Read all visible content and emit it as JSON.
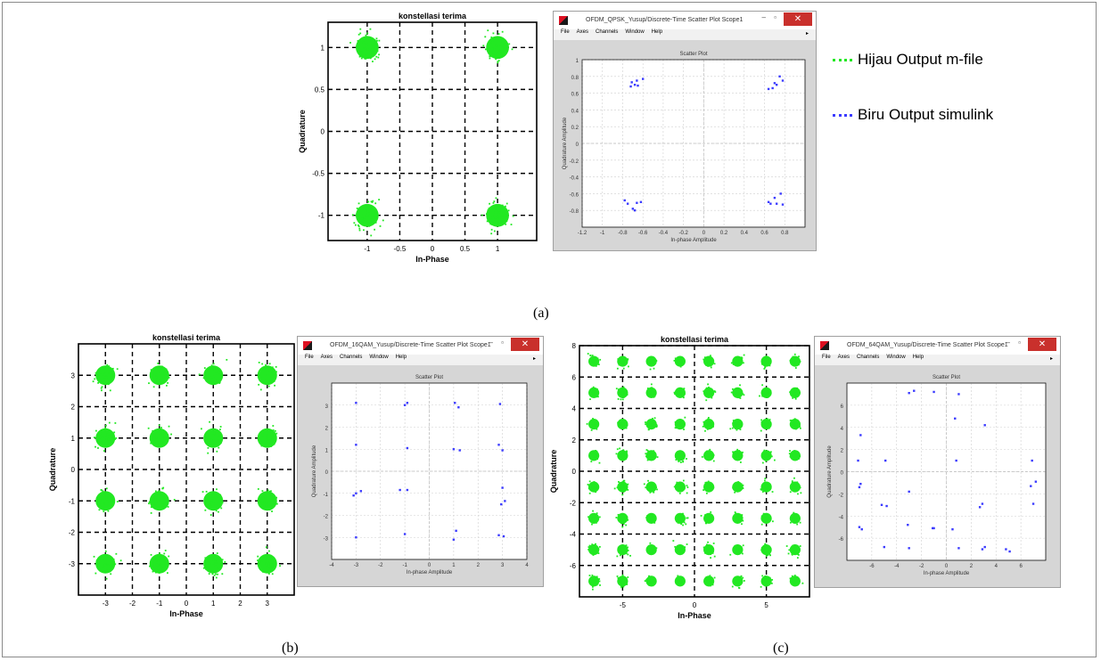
{
  "legend": {
    "green_label": "Hijau Output m-file",
    "blue_label": "Biru Output simulink",
    "green_color": "#22e822",
    "blue_color": "#3b3bff"
  },
  "captions": {
    "a": "(a)",
    "b": "(b)",
    "c": "(c)"
  },
  "windows": {
    "a": {
      "title": "OFDM_QPSK_Yusup/Discrete-Time Scatter Plot Scope1"
    },
    "b": {
      "title": "OFDM_16QAM_Yusup/Discrete-Time Scatter Plot Scope1"
    },
    "c": {
      "title": "OFDM_64QAM_Yusup/Discrete-Time Scatter Plot Scope1"
    },
    "menu": [
      "File",
      "Axes",
      "Channels",
      "Window",
      "Help"
    ],
    "controls": {
      "minimize": "–",
      "restore": "▫",
      "close": "✕",
      "menu_arrow": "▸"
    }
  },
  "chart_data": [
    {
      "id": "qpsk-mfile",
      "type": "scatter",
      "title": "konstellasi terima",
      "xlabel": "In-Phase",
      "ylabel": "Quadrature",
      "xlim": [
        -1.6,
        1.6
      ],
      "ylim": [
        -1.3,
        1.3
      ],
      "xticks": [
        -1,
        -0.5,
        0,
        0.5,
        1
      ],
      "yticks": [
        -1,
        -0.5,
        0,
        0.5,
        1
      ],
      "grid": true,
      "color": "#22e822",
      "constellation": [
        -1,
        1
      ],
      "spread": 0.13,
      "points_per_cluster": 70
    },
    {
      "id": "qpsk-simulink",
      "type": "scatter",
      "title": "Scatter Plot",
      "xlabel": "In-phase Amplitude",
      "ylabel": "Quadrature Amplitude",
      "xlim": [
        -1.2,
        1
      ],
      "ylim": [
        -1,
        1
      ],
      "xticks": [
        -1.2,
        -1,
        -0.8,
        -0.6,
        -0.4,
        -0.2,
        0,
        0.2,
        0.4,
        0.6,
        0.8
      ],
      "yticks": [
        -0.8,
        -0.6,
        -0.4,
        -0.2,
        0,
        0.2,
        0.4,
        0.6,
        0.8,
        1
      ],
      "grid": true,
      "color": "#3b3bff",
      "points": [
        [
          -0.71,
          0.73
        ],
        [
          -0.68,
          0.7
        ],
        [
          -0.66,
          0.75
        ],
        [
          -0.6,
          0.77
        ],
        [
          -0.72,
          0.68
        ],
        [
          -0.65,
          0.69
        ],
        [
          0.7,
          0.72
        ],
        [
          0.75,
          0.8
        ],
        [
          0.68,
          0.66
        ],
        [
          0.72,
          0.7
        ],
        [
          0.64,
          0.65
        ],
        [
          0.78,
          0.75
        ],
        [
          -0.75,
          -0.72
        ],
        [
          -0.7,
          -0.78
        ],
        [
          -0.66,
          -0.71
        ],
        [
          -0.78,
          -0.68
        ],
        [
          -0.68,
          -0.8
        ],
        [
          -0.62,
          -0.7
        ],
        [
          0.7,
          -0.65
        ],
        [
          0.76,
          -0.6
        ],
        [
          0.66,
          -0.72
        ],
        [
          0.72,
          -0.72
        ],
        [
          0.64,
          -0.7
        ],
        [
          0.78,
          -0.73
        ]
      ]
    },
    {
      "id": "16qam-mfile",
      "type": "scatter",
      "title": "konstellasi terima",
      "xlabel": "In-Phase",
      "ylabel": "Quadrature",
      "xlim": [
        -4,
        4
      ],
      "ylim": [
        -4,
        4
      ],
      "xticks": [
        -3,
        -2,
        -1,
        0,
        1,
        2,
        3
      ],
      "yticks": [
        -3,
        -2,
        -1,
        0,
        1,
        2,
        3
      ],
      "grid": true,
      "color": "#22e822",
      "constellation": [
        -3,
        -1,
        1,
        3
      ],
      "spread": 0.27,
      "points_per_cluster": 40
    },
    {
      "id": "16qam-simulink",
      "type": "scatter",
      "title": "Scatter Plot",
      "xlabel": "In-phase Amplitude",
      "ylabel": "Quadrature Amplitude",
      "xlim": [
        -4,
        4
      ],
      "ylim": [
        -4,
        4
      ],
      "xticks": [
        -4,
        -3,
        -2,
        -1,
        0,
        1,
        2,
        3,
        4
      ],
      "yticks": [
        -3,
        -2,
        -1,
        0,
        1,
        2,
        3
      ],
      "grid": true,
      "color": "#3b3bff",
      "points": [
        [
          -3,
          3.1
        ],
        [
          -0.9,
          3.1
        ],
        [
          -1,
          3.0
        ],
        [
          1.05,
          3.1
        ],
        [
          1.2,
          2.9
        ],
        [
          2.9,
          3.05
        ],
        [
          -3,
          1.2
        ],
        [
          -0.9,
          1.05
        ],
        [
          1,
          1.0
        ],
        [
          1.25,
          0.95
        ],
        [
          3,
          0.95
        ],
        [
          2.85,
          1.2
        ],
        [
          -3,
          -1.0
        ],
        [
          -2.8,
          -0.9
        ],
        [
          -3.1,
          -1.1
        ],
        [
          -1.2,
          -0.85
        ],
        [
          -0.9,
          -0.85
        ],
        [
          3,
          -0.75
        ],
        [
          3.1,
          -1.35
        ],
        [
          2.95,
          -1.5
        ],
        [
          -3,
          -3.0
        ],
        [
          -1,
          -2.85
        ],
        [
          1,
          -3.1
        ],
        [
          1.1,
          -2.7
        ],
        [
          2.85,
          -2.9
        ],
        [
          3.05,
          -2.95
        ]
      ]
    },
    {
      "id": "64qam-mfile",
      "type": "scatter",
      "title": "konstellasi terima",
      "xlabel": "In-Phase",
      "ylabel": "Quadrature",
      "xlim": [
        -8,
        8
      ],
      "ylim": [
        -8,
        8
      ],
      "xticks": [
        -5,
        0,
        5
      ],
      "yticks": [
        -6,
        -4,
        -2,
        0,
        2,
        4,
        6,
        8
      ],
      "grid": true,
      "color": "#22e822",
      "constellation": [
        -7,
        -5,
        -3,
        -1,
        1,
        3,
        5,
        7
      ],
      "spread": 0.28,
      "points_per_cluster": 22
    },
    {
      "id": "64qam-simulink",
      "type": "scatter",
      "title": "Scatter Plot",
      "xlabel": "In-phase Amplitude",
      "ylabel": "Quadrature Amplitude",
      "xlim": [
        -8,
        8
      ],
      "ylim": [
        -8,
        8
      ],
      "xticks": [
        -6,
        -4,
        -2,
        0,
        2,
        4,
        6
      ],
      "yticks": [
        -6,
        -4,
        -2,
        0,
        2,
        4,
        6
      ],
      "grid": true,
      "color": "#3b3bff",
      "points": [
        [
          -3,
          7.1
        ],
        [
          -2.6,
          7.3
        ],
        [
          -1,
          7.2
        ],
        [
          1,
          7.0
        ],
        [
          0.7,
          4.8
        ],
        [
          3.1,
          4.2
        ],
        [
          -6.9,
          3.3
        ],
        [
          -4.9,
          1.0
        ],
        [
          0.8,
          1.0
        ],
        [
          -7.1,
          1.0
        ],
        [
          6.9,
          1.0
        ],
        [
          7.2,
          -0.9
        ],
        [
          -6.9,
          -1.1
        ],
        [
          -7,
          -1.4
        ],
        [
          -3,
          -1.8
        ],
        [
          6.8,
          -1.3
        ],
        [
          -4.8,
          -3.1
        ],
        [
          -5.2,
          -3.0
        ],
        [
          2.9,
          -2.9
        ],
        [
          2.7,
          -3.2
        ],
        [
          7,
          -2.9
        ],
        [
          -7,
          -5.0
        ],
        [
          -6.8,
          -5.2
        ],
        [
          -3.1,
          -4.8
        ],
        [
          -3,
          -6.9
        ],
        [
          -1.1,
          -5.1
        ],
        [
          -1,
          -5.1
        ],
        [
          1,
          -6.9
        ],
        [
          3.1,
          -6.8
        ],
        [
          2.9,
          -7.0
        ],
        [
          4.8,
          -7.0
        ],
        [
          5.1,
          -7.2
        ],
        [
          -5,
          -6.8
        ],
        [
          0.5,
          -5.2
        ]
      ]
    }
  ]
}
